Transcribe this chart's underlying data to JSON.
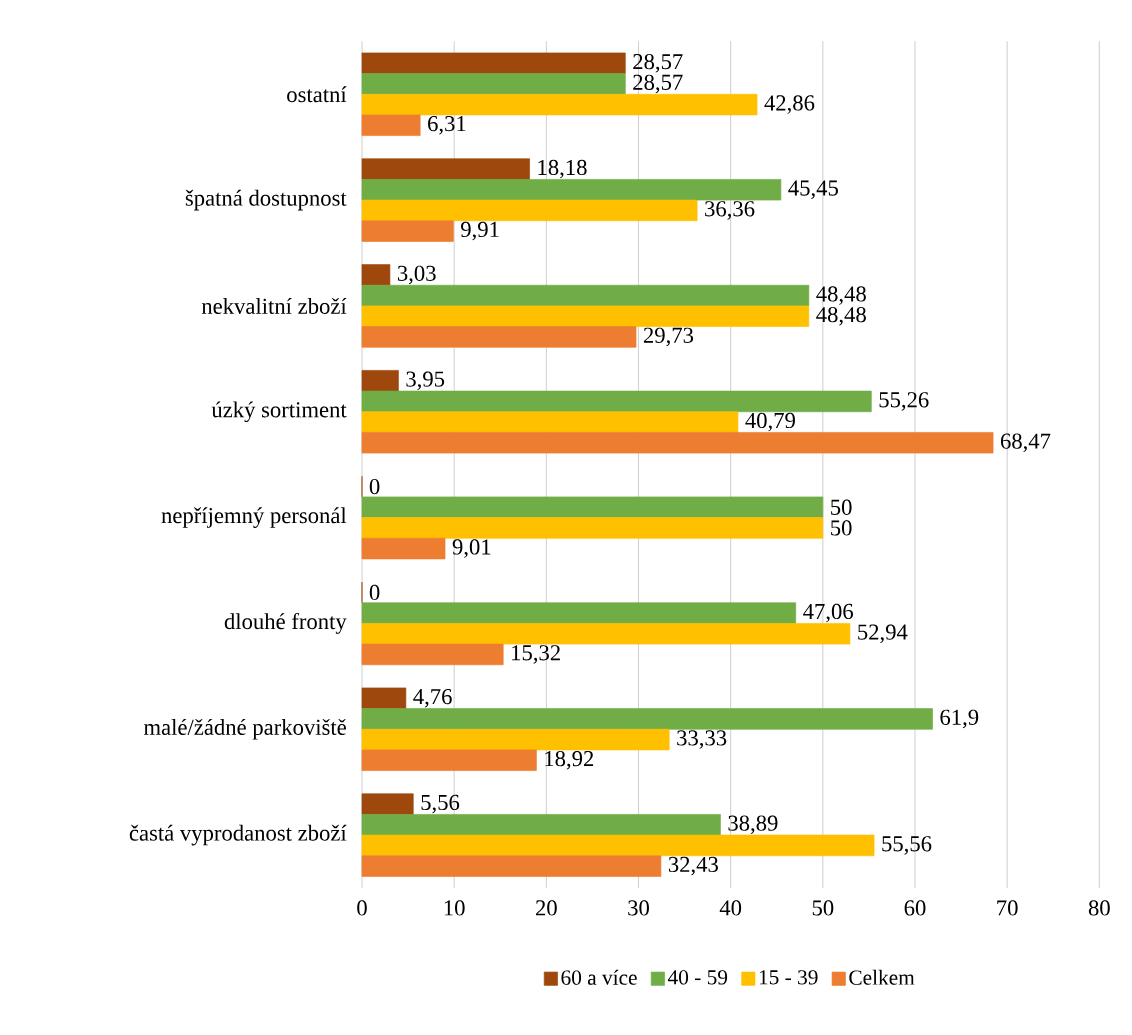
{
  "chart_data": {
    "type": "bar",
    "orientation": "horizontal",
    "categories": [
      "ostatní",
      "špatná dostupnost",
      "nekvalitní zboží",
      "úzký sortiment",
      "nepříjemný personál",
      "dlouhé fronty",
      "malé/žádné parkoviště",
      "častá vyprodanost zboží"
    ],
    "series": [
      {
        "name": "60 a více",
        "color": "#9e480e",
        "values": [
          28.57,
          18.18,
          3.03,
          3.95,
          0,
          0,
          4.76,
          5.56
        ],
        "value_labels": [
          "28,57",
          "18,18",
          "3,03",
          "3,95",
          "0",
          "0",
          "4,76",
          "5,56"
        ]
      },
      {
        "name": "40 - 59",
        "color": "#70ad47",
        "values": [
          28.57,
          45.45,
          48.48,
          55.26,
          50,
          47.06,
          61.9,
          38.89
        ],
        "value_labels": [
          "28,57",
          "45,45",
          "48,48",
          "55,26",
          "50",
          "47,06",
          "61,9",
          "38,89"
        ]
      },
      {
        "name": "15 - 39",
        "color": "#ffc000",
        "values": [
          42.86,
          36.36,
          48.48,
          40.79,
          50,
          52.94,
          33.33,
          55.56
        ],
        "value_labels": [
          "42,86",
          "36,36",
          "48,48",
          "40,79",
          "50",
          "52,94",
          "33,33",
          "55,56"
        ]
      },
      {
        "name": "Celkem",
        "color": "#ed7d31",
        "values": [
          6.31,
          9.91,
          29.73,
          68.47,
          9.01,
          15.32,
          18.92,
          32.43
        ],
        "value_labels": [
          "6,31",
          "9,91",
          "29,73",
          "68,47",
          "9,01",
          "15,32",
          "18,92",
          "32,43"
        ]
      }
    ],
    "xlim": [
      0,
      80
    ],
    "xticks": [
      0,
      10,
      20,
      30,
      40,
      50,
      60,
      70,
      80
    ],
    "grid": "x",
    "legend": "bottom"
  }
}
